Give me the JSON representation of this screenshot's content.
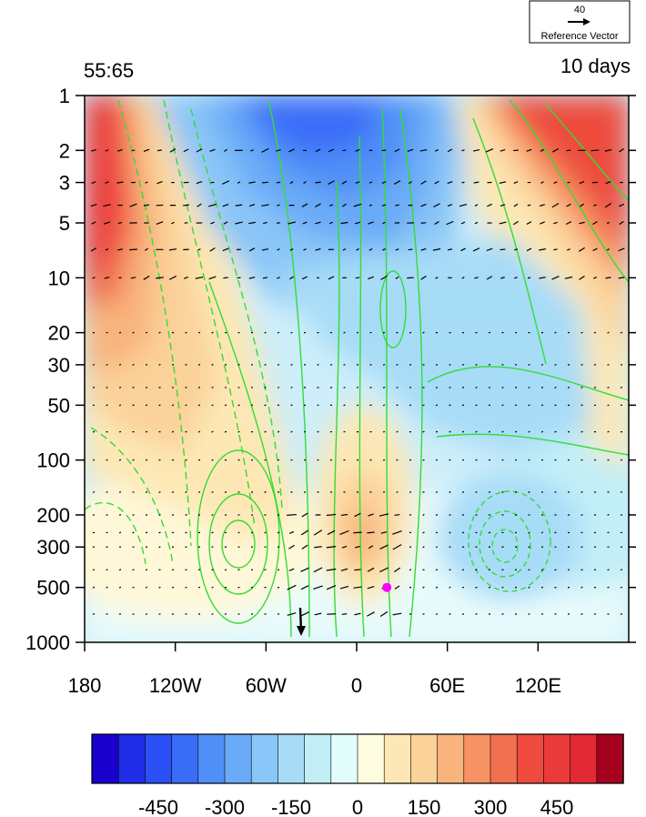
{
  "header": {
    "left_label": "55:65",
    "right_label": "10 days"
  },
  "reference_vector": {
    "magnitude": "40",
    "label": "Reference Vector"
  },
  "chart_data": {
    "type": "heatmap",
    "title": "",
    "xlabel": "",
    "ylabel": "",
    "x_ticks": [
      {
        "value": -180,
        "label": "180"
      },
      {
        "value": -120,
        "label": "120W"
      },
      {
        "value": -60,
        "label": "60W"
      },
      {
        "value": 0,
        "label": "0"
      },
      {
        "value": 60,
        "label": "60E"
      },
      {
        "value": 120,
        "label": "120E"
      }
    ],
    "y_ticks": [
      {
        "value": 1,
        "label": "1"
      },
      {
        "value": 2,
        "label": "2"
      },
      {
        "value": 3,
        "label": "3"
      },
      {
        "value": 5,
        "label": "5"
      },
      {
        "value": 10,
        "label": "10"
      },
      {
        "value": 20,
        "label": "20"
      },
      {
        "value": 30,
        "label": "30"
      },
      {
        "value": 50,
        "label": "50"
      },
      {
        "value": 100,
        "label": "100"
      },
      {
        "value": 200,
        "label": "200"
      },
      {
        "value": 300,
        "label": "300"
      },
      {
        "value": 500,
        "label": "500"
      },
      {
        "value": 1000,
        "label": "1000"
      }
    ],
    "xlim": [
      -180,
      180
    ],
    "ylim": [
      1000,
      1
    ],
    "y_scale": "log",
    "marker": {
      "x": 20,
      "y": 500,
      "color": "#ff00ff"
    },
    "colorbar": {
      "colors": [
        "#1a00cc",
        "#1f2ee6",
        "#2a4ff5",
        "#3a6df7",
        "#4f8ff7",
        "#6aabf7",
        "#8ac6f7",
        "#a7dcf7",
        "#c2eef7",
        "#e2fbfb",
        "#fffde0",
        "#fde8b5",
        "#fbd29a",
        "#f8b47c",
        "#f69264",
        "#f27050",
        "#ee4b3e",
        "#ec3a3a",
        "#e12a35",
        "#a6001f"
      ],
      "tick_labels": [
        "-450",
        "-300",
        "-150",
        "0",
        "150",
        "300",
        "450"
      ],
      "tick_values": [
        -450,
        -300,
        -150,
        0,
        150,
        300,
        450
      ],
      "range": [
        -600,
        600
      ]
    }
  }
}
